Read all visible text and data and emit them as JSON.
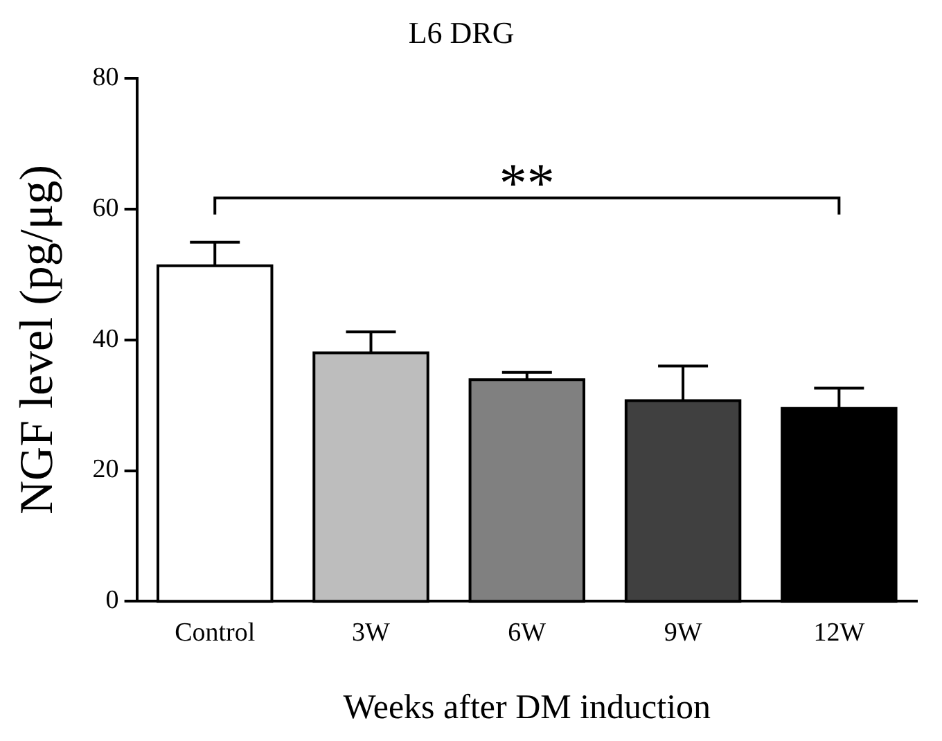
{
  "chart_data": {
    "type": "bar",
    "title": "L6 DRG",
    "xlabel": "Weeks after DM induction",
    "ylabel": "NGF level (pg/μg)",
    "categories": [
      "Control",
      "3W",
      "6W",
      "9W",
      "12W"
    ],
    "values": [
      51.3,
      38.0,
      33.9,
      30.7,
      29.5
    ],
    "colors": [
      "#ffffff",
      "#bdbdbd",
      "#808080",
      "#404040",
      "#000000"
    ],
    "errors": [
      [
        51.3,
        54.9
      ],
      [
        38.0,
        41.2
      ],
      [
        33.9,
        35.0
      ],
      [
        30.7,
        36.0
      ],
      [
        29.5,
        32.6
      ]
    ],
    "ylim": [
      0,
      80
    ],
    "yticks": [
      0,
      20,
      40,
      60,
      80
    ],
    "grid": false,
    "legend": false,
    "annotations": [
      "**"
    ]
  }
}
